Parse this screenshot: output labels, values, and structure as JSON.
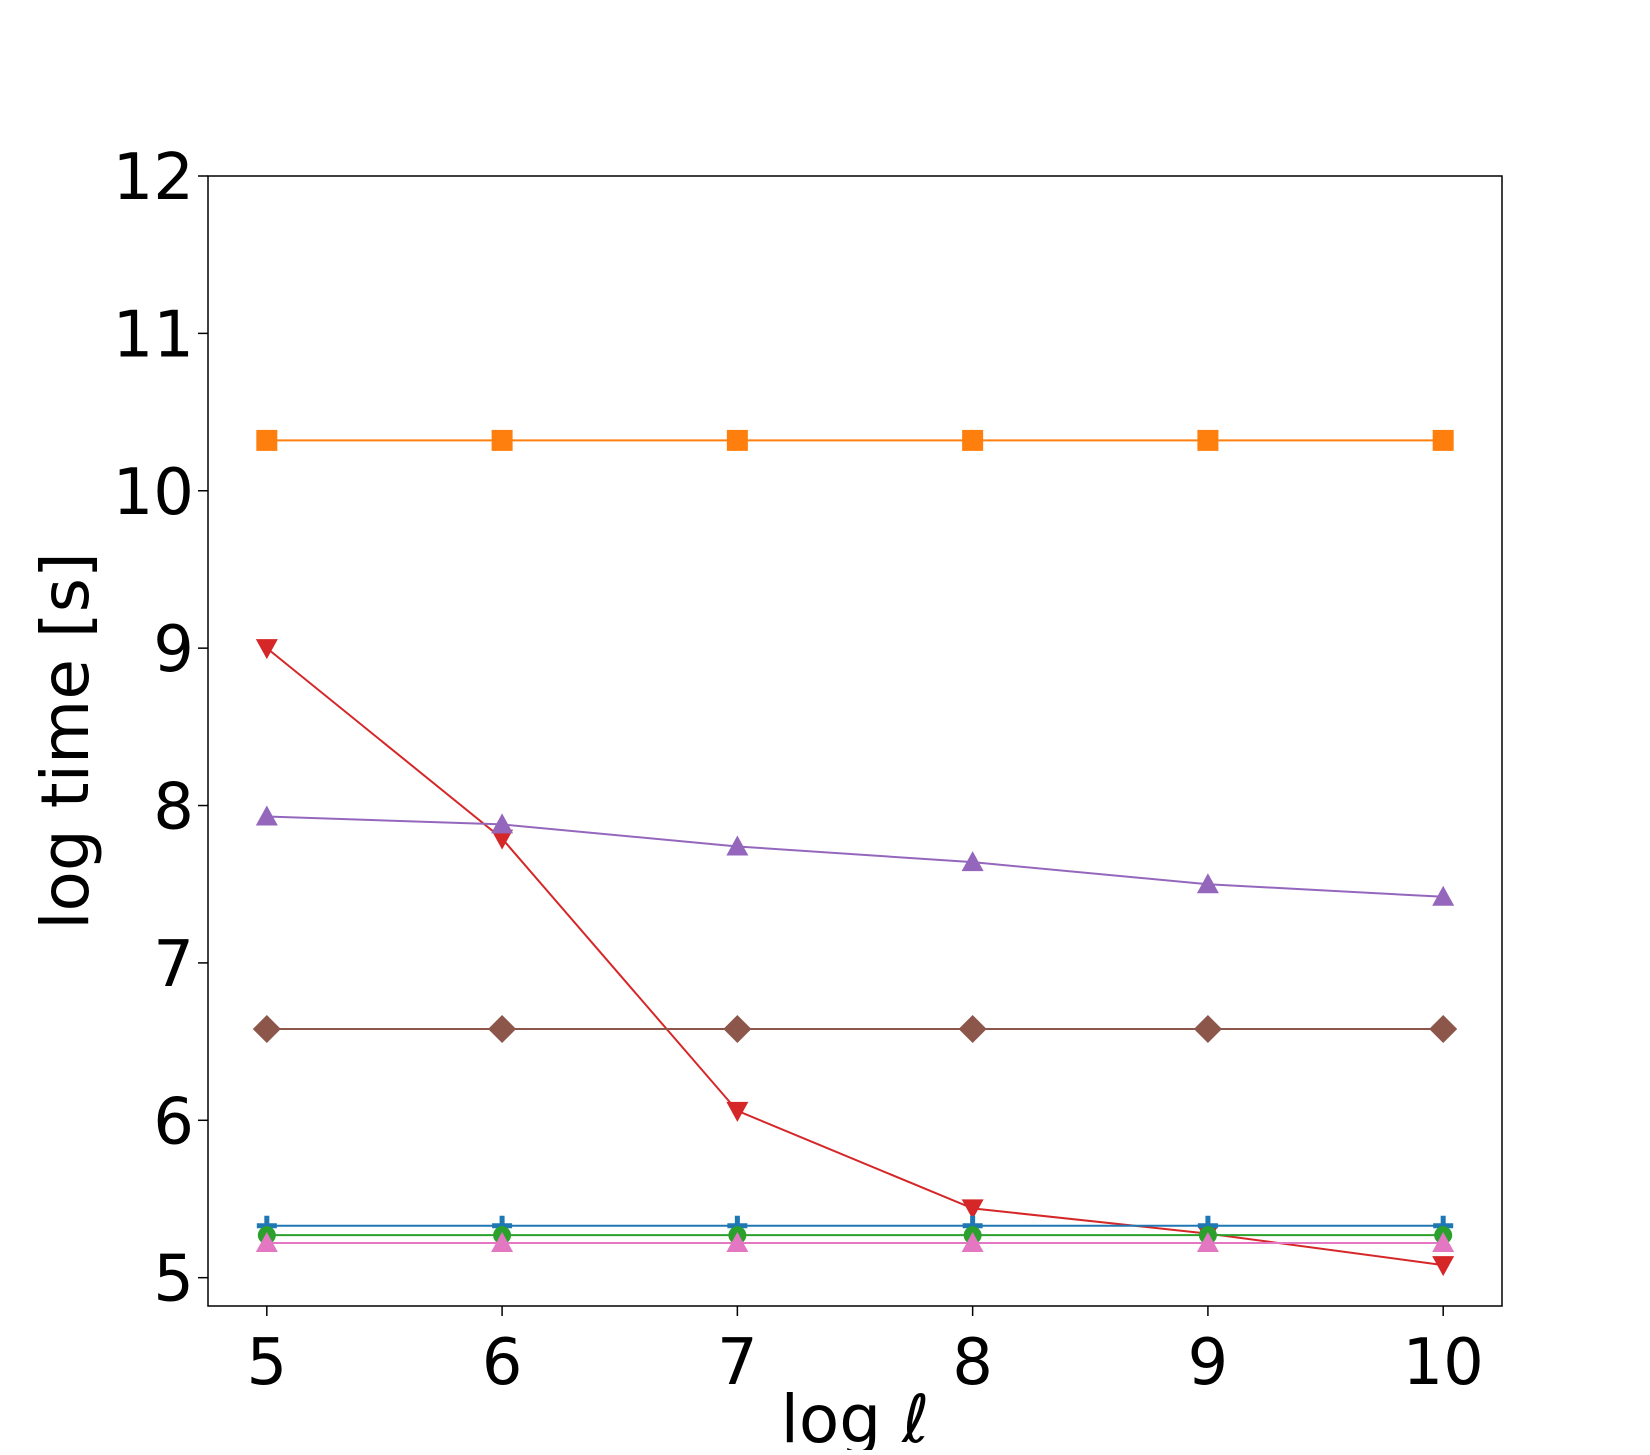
{
  "chart_data": {
    "type": "line",
    "title": "",
    "xlabel": "log ℓ",
    "ylabel": "log time [s]",
    "x": [
      5,
      6,
      7,
      8,
      9,
      10
    ],
    "xlim": [
      4.75,
      10.25
    ],
    "ylim": [
      4.82,
      12.0
    ],
    "xticks": [
      "5",
      "6",
      "7",
      "8",
      "9",
      "10"
    ],
    "yticks": [
      "5",
      "6",
      "7",
      "8",
      "9",
      "10",
      "11",
      "12"
    ],
    "grid": false,
    "series": [
      {
        "color": "#ff7f0e",
        "marker": "square",
        "values": [
          10.32,
          10.32,
          10.32,
          10.32,
          10.32,
          10.32
        ]
      },
      {
        "color": "#d62728",
        "marker": "triangle-down",
        "values": [
          9.0,
          7.79,
          6.06,
          5.44,
          5.28,
          5.08
        ]
      },
      {
        "color": "#9467bd",
        "marker": "triangle-up",
        "values": [
          7.93,
          7.88,
          7.74,
          7.64,
          7.5,
          7.42
        ]
      },
      {
        "color": "#8c564b",
        "marker": "diamond",
        "values": [
          6.58,
          6.58,
          6.58,
          6.58,
          6.58,
          6.58
        ]
      },
      {
        "color": "#1f77b4",
        "marker": "plus",
        "values": [
          5.33,
          5.33,
          5.33,
          5.33,
          5.33,
          5.33
        ]
      },
      {
        "color": "#2ca02c",
        "marker": "circle",
        "values": [
          5.27,
          5.27,
          5.27,
          5.27,
          5.27,
          5.27
        ]
      },
      {
        "color": "#e377c2",
        "marker": "triangle-up",
        "values": [
          5.22,
          5.22,
          5.22,
          5.22,
          5.22,
          5.22
        ]
      }
    ]
  }
}
